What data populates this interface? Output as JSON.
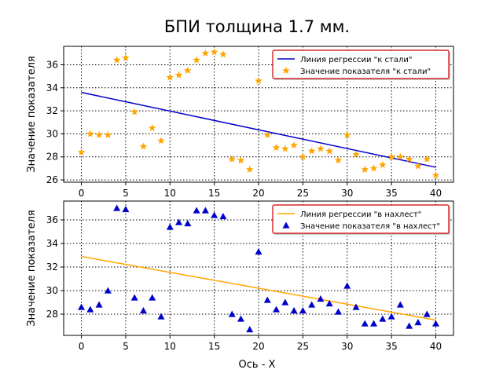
{
  "figure": {
    "title": "БПИ толщина 1.7 мм.",
    "xlabel": "Ось - X"
  },
  "chart_data": [
    {
      "type": "scatter",
      "ylabel": "Значение показателя",
      "xlim": [
        -2,
        42
      ],
      "ylim": [
        25.8,
        37.6
      ],
      "xticks": [
        0,
        5,
        10,
        15,
        20,
        25,
        30,
        35,
        40
      ],
      "yticks": [
        26,
        28,
        30,
        32,
        34,
        36
      ],
      "grid": true,
      "grid_style": "dotted",
      "legend_position": "top-right",
      "series": [
        {
          "name": "Значение показателя \"к стали\"",
          "kind": "scatter",
          "marker": "star",
          "color": "#ffa500",
          "x": [
            0,
            1,
            2,
            3,
            4,
            5,
            6,
            7,
            8,
            9,
            10,
            11,
            12,
            13,
            14,
            15,
            16,
            17,
            18,
            19,
            20,
            21,
            22,
            23,
            24,
            25,
            26,
            27,
            28,
            29,
            30,
            31,
            32,
            33,
            34,
            35,
            36,
            37,
            38,
            39,
            40
          ],
          "y": [
            28.4,
            30.0,
            29.9,
            29.9,
            36.4,
            36.6,
            31.9,
            28.9,
            30.5,
            29.4,
            34.9,
            35.1,
            35.5,
            36.4,
            37.0,
            37.1,
            36.9,
            27.8,
            27.7,
            26.9,
            34.6,
            29.9,
            28.8,
            28.7,
            29.0,
            28.0,
            28.5,
            28.7,
            28.5,
            27.7,
            29.9,
            28.2,
            26.9,
            27.0,
            27.3,
            28.0,
            28.0,
            27.8,
            27.2,
            27.8,
            26.4
          ]
        },
        {
          "name": "Линия регрессии \"к стали\"",
          "kind": "line",
          "color": "#0000cc",
          "x": [
            0,
            40
          ],
          "y": [
            33.6,
            27.1
          ]
        }
      ]
    },
    {
      "type": "scatter",
      "ylabel": "Значение показателя",
      "xlim": [
        -2,
        42
      ],
      "ylim": [
        26.2,
        37.6
      ],
      "xticks": [
        0,
        5,
        10,
        15,
        20,
        25,
        30,
        35,
        40
      ],
      "yticks": [
        28,
        30,
        32,
        34,
        36
      ],
      "grid": true,
      "grid_style": "dotted",
      "legend_position": "top-right",
      "series": [
        {
          "name": "Значение показателя \"в нахлест\"",
          "kind": "scatter",
          "marker": "triangle",
          "color": "#0000cc",
          "x": [
            0,
            1,
            2,
            3,
            4,
            5,
            6,
            7,
            8,
            9,
            10,
            11,
            12,
            13,
            14,
            15,
            16,
            17,
            18,
            19,
            20,
            21,
            22,
            23,
            24,
            25,
            26,
            27,
            28,
            29,
            30,
            31,
            32,
            33,
            34,
            35,
            36,
            37,
            38,
            39,
            40
          ],
          "y": [
            28.6,
            28.4,
            28.8,
            30.0,
            37.0,
            36.9,
            29.4,
            28.3,
            29.4,
            27.8,
            35.4,
            35.8,
            35.7,
            36.8,
            36.8,
            36.4,
            36.3,
            28.0,
            27.6,
            26.7,
            33.3,
            29.2,
            28.4,
            29.0,
            28.3,
            28.3,
            28.8,
            29.3,
            28.9,
            28.2,
            30.4,
            28.6,
            27.2,
            27.2,
            27.6,
            27.8,
            28.8,
            27.0,
            27.3,
            28.0,
            27.2
          ]
        },
        {
          "name": "Линия регрессии \"в нахлест\"",
          "kind": "line",
          "color": "#ffa500",
          "x": [
            0,
            40
          ],
          "y": [
            32.9,
            27.5
          ]
        }
      ]
    }
  ]
}
